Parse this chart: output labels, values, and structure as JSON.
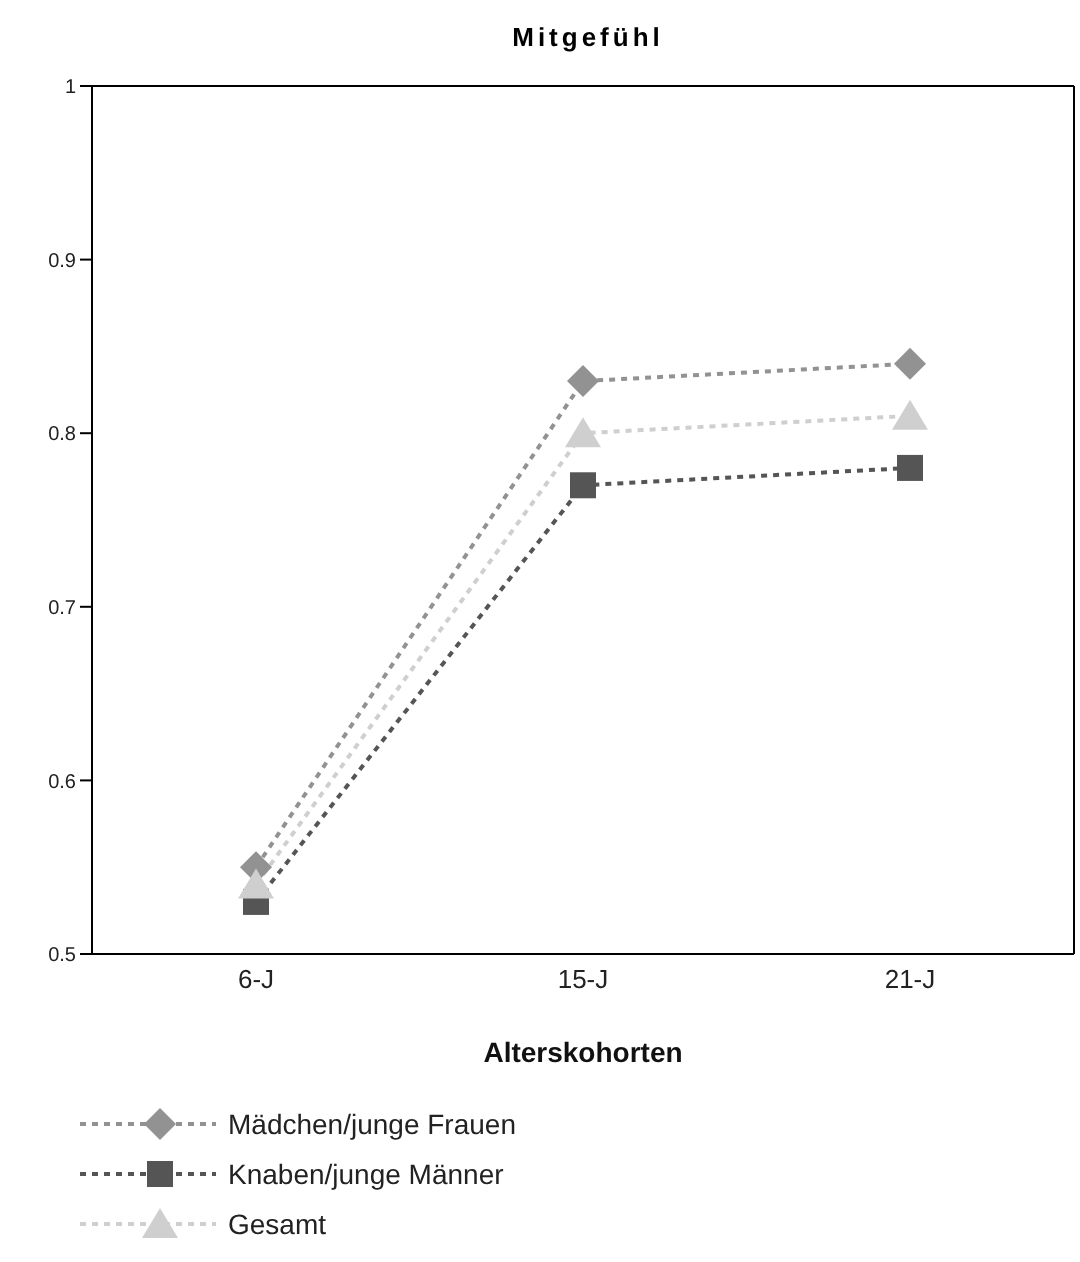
{
  "chart_data": {
    "type": "line",
    "title": "Mitgefühl",
    "xlabel": "Alterskohorten",
    "categories": [
      "6-J",
      "15-J",
      "21-J"
    ],
    "series": [
      {
        "name": "Mädchen/junge Frauen",
        "color": "#929292",
        "marker": "diamond",
        "values": [
          0.55,
          0.83,
          0.84
        ]
      },
      {
        "name": "Knaben/junge Männer",
        "color": "#555555",
        "marker": "square",
        "values": [
          0.53,
          0.77,
          0.78
        ]
      },
      {
        "name": "Gesamt",
        "color": "#cfcfcf",
        "marker": "triangle",
        "values": [
          0.54,
          0.8,
          0.81
        ]
      }
    ],
    "ylim": [
      0.5,
      1
    ],
    "yticks": [
      0.5,
      0.6,
      0.7,
      0.8,
      0.9,
      1
    ],
    "grid": false,
    "legend": "bottom",
    "line_style": "dotted"
  }
}
